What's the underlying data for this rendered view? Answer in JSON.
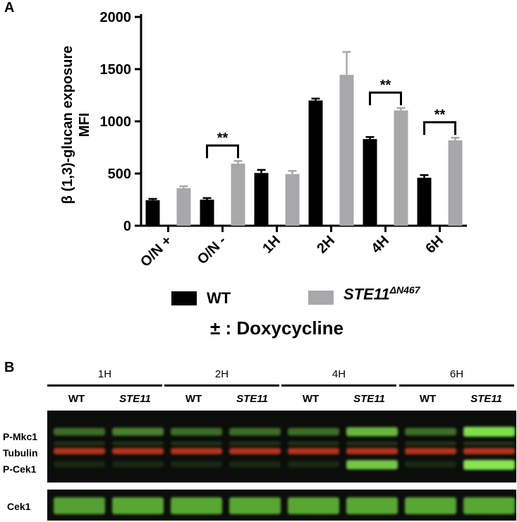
{
  "panel_a_label": "A",
  "panel_b_label": "B",
  "chart_data": {
    "type": "bar",
    "ylabel_line1": "β (1,3)-glucan exposure",
    "ylabel_line2": "MFI",
    "ylim": [
      0,
      2000
    ],
    "yticks": [
      "0",
      "500",
      "1000",
      "1500",
      "2000"
    ],
    "categories": [
      "O/N +",
      "O/N -",
      "1H",
      "2H",
      "4H",
      "6H"
    ],
    "series": [
      {
        "name": "WT",
        "color": "#000000",
        "values": [
          245,
          250,
          505,
          1200,
          830,
          460
        ],
        "errors": [
          12,
          15,
          30,
          18,
          20,
          25
        ]
      },
      {
        "name": "STE11",
        "name_sup": "ΔN467",
        "color": "#a8a8aa",
        "values": [
          360,
          595,
          495,
          1445,
          1105,
          818
        ],
        "errors": [
          18,
          25,
          30,
          220,
          22,
          25
        ]
      }
    ],
    "significance": [
      {
        "category_index": 1,
        "label": "**"
      },
      {
        "category_index": 4,
        "label": "**"
      },
      {
        "category_index": 5,
        "label": "**"
      }
    ],
    "condition_label": "± : Doxycycline"
  },
  "blot": {
    "timepoints": [
      "1H",
      "2H",
      "4H",
      "6H"
    ],
    "lanes": [
      {
        "label": "WT",
        "italic": false
      },
      {
        "label": "STE11",
        "italic": true
      },
      {
        "label": "WT",
        "italic": false
      },
      {
        "label": "STE11",
        "italic": true
      },
      {
        "label": "WT",
        "italic": false
      },
      {
        "label": "STE11",
        "italic": true
      },
      {
        "label": "WT",
        "italic": false
      },
      {
        "label": "STE11",
        "italic": true
      }
    ],
    "band_labels": [
      "P-Mkc1",
      "Tubulin",
      "P-Cek1"
    ],
    "bottom_label": "Cek1",
    "pmkc1_intensity": [
      0.45,
      0.55,
      0.45,
      0.45,
      0.45,
      0.8,
      0.45,
      1.0
    ],
    "pcek1_intensity": [
      0.12,
      0.12,
      0.12,
      0.12,
      0.12,
      0.85,
      0.12,
      1.0
    ],
    "cek1_intensity": [
      0.85,
      0.9,
      0.9,
      0.9,
      0.9,
      0.9,
      0.9,
      0.9
    ]
  }
}
